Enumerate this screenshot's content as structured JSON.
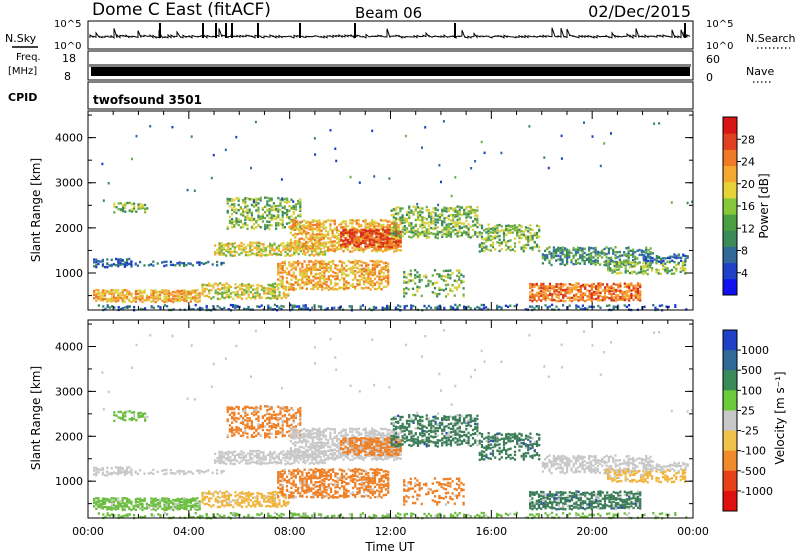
{
  "header": {
    "station": "Dome C East (fitACF)",
    "beam": "Beam 06",
    "date": "02/Dec/2015"
  },
  "strips": {
    "nsky": {
      "label": "N.Sky",
      "tick_top": "10^5",
      "tick_bottom": "10^0",
      "right_label": "N.Search",
      "right_tick_top": "10^5",
      "right_tick_bottom": "10^0"
    },
    "freq": {
      "label_line1": "Freq.",
      "label_line2": "[MHz]",
      "tick_top": "18",
      "tick_bottom": "8",
      "right_label": "Nave",
      "right_tick_top": "60",
      "right_tick_bottom": "0"
    },
    "cpid": {
      "label": "CPID",
      "value": "twofsound 3501"
    }
  },
  "chart_data": [
    {
      "type": "heatmap",
      "name": "power",
      "ylabel": "Slant Range [km]",
      "xlabel": "",
      "ylim": [
        180,
        4590
      ],
      "xlim": [
        0,
        24
      ],
      "y_ticks": [
        "1000",
        "2000",
        "3000",
        "4000"
      ],
      "x_ticks": [
        "",
        "",
        "",
        "",
        "",
        "",
        ""
      ],
      "colorbar": {
        "label": "Power [dB]",
        "range": [
          0,
          32
        ],
        "ticks": [
          "4",
          "8",
          "12",
          "16",
          "20",
          "24",
          "28"
        ],
        "colors": [
          "#1010f0",
          "#2040c8",
          "#306898",
          "#3a8a5a",
          "#4aa040",
          "#86c83a",
          "#e8d23a",
          "#f4a830",
          "#ee7a26",
          "#e04020",
          "#d81414"
        ]
      }
    },
    {
      "type": "heatmap",
      "name": "velocity",
      "ylabel": "Slant Range [km]",
      "xlabel": "Time UT",
      "ylim": [
        180,
        4590
      ],
      "xlim": [
        0,
        24
      ],
      "y_ticks": [
        "1000",
        "2000",
        "3000",
        "4000"
      ],
      "x_ticks": [
        "00:00",
        "04:00",
        "08:00",
        "12:00",
        "16:00",
        "20:00",
        "00:00"
      ],
      "colorbar": {
        "label": "Velocity [m s⁻¹]",
        "ticks": [
          "1000",
          "500",
          "100",
          "25",
          "-25",
          "-100",
          "-500",
          "-1000"
        ],
        "colors": [
          "#2040c8",
          "#306898",
          "#3a8a5a",
          "#6acc3a",
          "#c8c8c8",
          "#f0c24a",
          "#f08a2a",
          "#e84018",
          "#e01010"
        ]
      }
    }
  ],
  "colors": {
    "power_ramp": [
      "#1a3cc8",
      "#2f6aa6",
      "#3b8a5e",
      "#70b040",
      "#d8d03c",
      "#f4a830",
      "#ee7a26",
      "#d83018"
    ],
    "velocity": {
      "neutral": "#c8c8c8",
      "neg_weak": "#f0b43a",
      "neg_strong": "#ee7f24",
      "pos_weak": "#6abd3e",
      "pos_strong": "#3a7c56",
      "pos_max": "#2e50a8"
    }
  }
}
